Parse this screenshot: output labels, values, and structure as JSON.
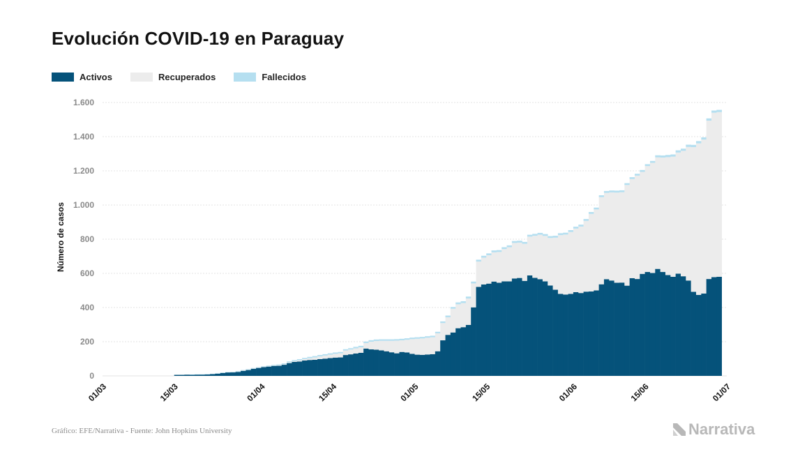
{
  "title": "Evolución COVID-19 en Paraguay",
  "source": "Gráfico: EFE/Narrativa - Fuente: John Hopkins University",
  "brand": "Narrativa",
  "colors": {
    "activos": "#05527a",
    "recuperados": "#ececec",
    "fallecidos": "#b5dff0",
    "grid": "#e3e3e3"
  },
  "chart_data": {
    "type": "bar",
    "stacked": true,
    "title": "Evolución COVID-19 en Paraguay",
    "ylabel": "Número de casos",
    "xlabel": "",
    "ylim": [
      0,
      1600
    ],
    "yticks": [
      0,
      200,
      400,
      600,
      800,
      1000,
      1200,
      1400,
      1600
    ],
    "ytick_labels": [
      "0",
      "200",
      "400",
      "600",
      "800",
      "1.000",
      "1.200",
      "1.400",
      "1.600"
    ],
    "xticks": [
      "01/03",
      "15/03",
      "01/04",
      "15/04",
      "01/05",
      "15/05",
      "01/06",
      "15/06",
      "01/07"
    ],
    "x_start": "01/03",
    "x_end": "01/07",
    "grid": true,
    "legend": "top-left",
    "series": [
      {
        "name": "Activos",
        "color": "#05527a",
        "values": [
          0,
          0,
          0,
          0,
          0,
          0,
          0,
          0,
          0,
          0,
          0,
          0,
          0,
          0,
          6,
          6,
          7,
          7,
          8,
          8,
          9,
          11,
          13,
          17,
          20,
          21,
          24,
          30,
          35,
          42,
          47,
          52,
          55,
          59,
          59,
          65,
          75,
          82,
          84,
          90,
          93,
          94,
          98,
          101,
          104,
          107,
          108,
          122,
          126,
          131,
          135,
          160,
          155,
          153,
          149,
          144,
          138,
          132,
          140,
          137,
          129,
          124,
          123,
          125,
          127,
          144,
          208,
          240,
          254,
          279,
          285,
          298,
          401,
          521,
          535,
          540,
          552,
          545,
          553,
          553,
          570,
          573,
          556,
          588,
          574,
          566,
          553,
          529,
          504,
          480,
          476,
          480,
          490,
          485,
          493,
          494,
          500,
          536,
          566,
          558,
          545,
          546,
          528,
          572,
          567,
          597,
          608,
          602,
          626,
          608,
          590,
          580,
          598,
          583,
          558,
          492,
          474,
          482,
          567,
          578,
          580
        ]
      },
      {
        "name": "Recuperados",
        "color": "#ececec",
        "values": [
          0,
          0,
          0,
          0,
          0,
          0,
          0,
          0,
          0,
          0,
          0,
          0,
          0,
          0,
          0,
          0,
          0,
          0,
          0,
          0,
          0,
          0,
          0,
          0,
          0,
          1,
          1,
          1,
          1,
          1,
          1,
          1,
          1,
          1,
          3,
          3,
          4,
          4,
          7,
          8,
          10,
          14,
          16,
          18,
          20,
          22,
          24,
          26,
          28,
          30,
          32,
          32,
          45,
          51,
          56,
          61,
          67,
          74,
          68,
          74,
          86,
          93,
          96,
          98,
          99,
          105,
          101,
          103,
          139,
          140,
          141,
          155,
          140,
          148,
          157,
          166,
          171,
          180,
          189,
          200,
          208,
          207,
          217,
          227,
          246,
          260,
          266,
          278,
          305,
          344,
          351,
          362,
          372,
          389,
          414,
          454,
          474,
          510,
          505,
          516,
          528,
          529,
          589,
          580,
          605,
          597,
          620,
          645,
          653,
          670,
          690,
          703,
          709,
          734,
          782,
          847,
          887,
          901,
          927,
          962,
          964
        ]
      },
      {
        "name": "Fallecidos",
        "color": "#b5dff0",
        "values": [
          0,
          0,
          0,
          0,
          0,
          0,
          0,
          0,
          0,
          0,
          0,
          0,
          0,
          0,
          0,
          0,
          0,
          1,
          1,
          1,
          1,
          1,
          2,
          2,
          2,
          2,
          3,
          3,
          3,
          3,
          3,
          3,
          4,
          4,
          5,
          5,
          6,
          6,
          7,
          7,
          8,
          8,
          8,
          8,
          8,
          8,
          8,
          8,
          8,
          9,
          9,
          9,
          9,
          9,
          9,
          9,
          9,
          9,
          9,
          9,
          9,
          9,
          9,
          9,
          9,
          9,
          10,
          10,
          10,
          11,
          11,
          11,
          11,
          11,
          11,
          11,
          11,
          11,
          11,
          11,
          11,
          11,
          11,
          11,
          11,
          11,
          11,
          11,
          11,
          11,
          11,
          11,
          11,
          11,
          11,
          11,
          11,
          11,
          11,
          11,
          11,
          11,
          11,
          11,
          11,
          11,
          11,
          11,
          12,
          12,
          13,
          13,
          13,
          13,
          13,
          13,
          13,
          13,
          13,
          13,
          13
        ]
      }
    ]
  }
}
